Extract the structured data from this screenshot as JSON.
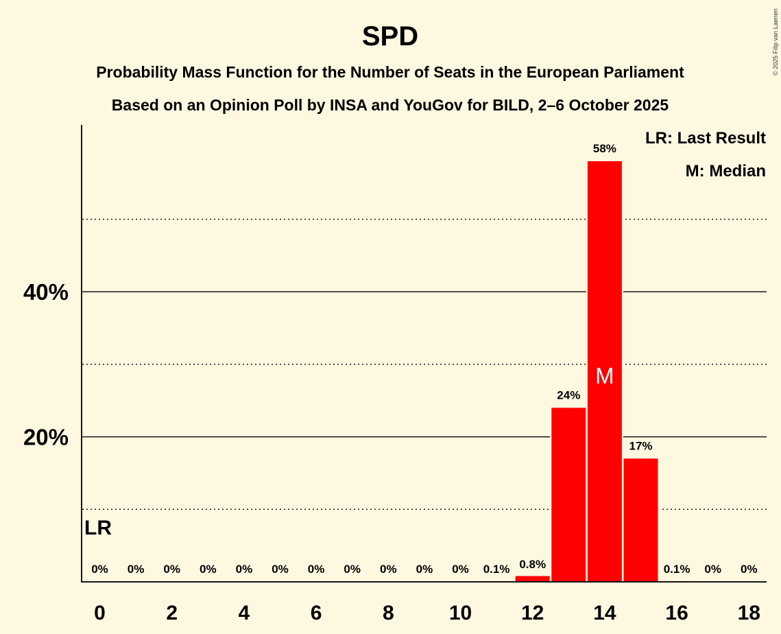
{
  "title": "SPD",
  "subtitle1": "Probability Mass Function for the Number of Seats in the European Parliament",
  "subtitle2": "Based on an Opinion Poll by INSA and YouGov for BILD, 2–6 October 2025",
  "copyright": "© 2025 Filip van Laenen",
  "legend": {
    "last_result": "LR: Last Result",
    "median": "M: Median"
  },
  "markers": {
    "last_result_label": "LR",
    "last_result_seat": 0,
    "median_label": "M",
    "median_seat": 14
  },
  "colors": {
    "bar": "#ff0000",
    "background": "#fef8e1",
    "text": "#161616"
  },
  "chart_data": {
    "type": "bar",
    "title": "SPD",
    "xlabel": "",
    "ylabel": "",
    "categories": [
      0,
      1,
      2,
      3,
      4,
      5,
      6,
      7,
      8,
      9,
      10,
      11,
      12,
      13,
      14,
      15,
      16,
      17,
      18
    ],
    "values": [
      0,
      0,
      0,
      0,
      0,
      0,
      0,
      0,
      0,
      0,
      0,
      0.1,
      0.8,
      24,
      58,
      17,
      0.1,
      0,
      0
    ],
    "value_labels": [
      "0%",
      "0%",
      "0%",
      "0%",
      "0%",
      "0%",
      "0%",
      "0%",
      "0%",
      "0%",
      "0%",
      "0.1%",
      "0.8%",
      "24%",
      "58%",
      "17%",
      "0.1%",
      "0%",
      "0%"
    ],
    "x_ticks": [
      0,
      2,
      4,
      6,
      8,
      10,
      12,
      14,
      16,
      18
    ],
    "y_ticks": [
      {
        "value": 20,
        "label": "20%"
      },
      {
        "value": 40,
        "label": "40%"
      }
    ],
    "y_minor_gridlines": [
      10,
      30,
      50
    ],
    "ylim": [
      0,
      63
    ],
    "grid": true,
    "legend_position": "top-right"
  }
}
